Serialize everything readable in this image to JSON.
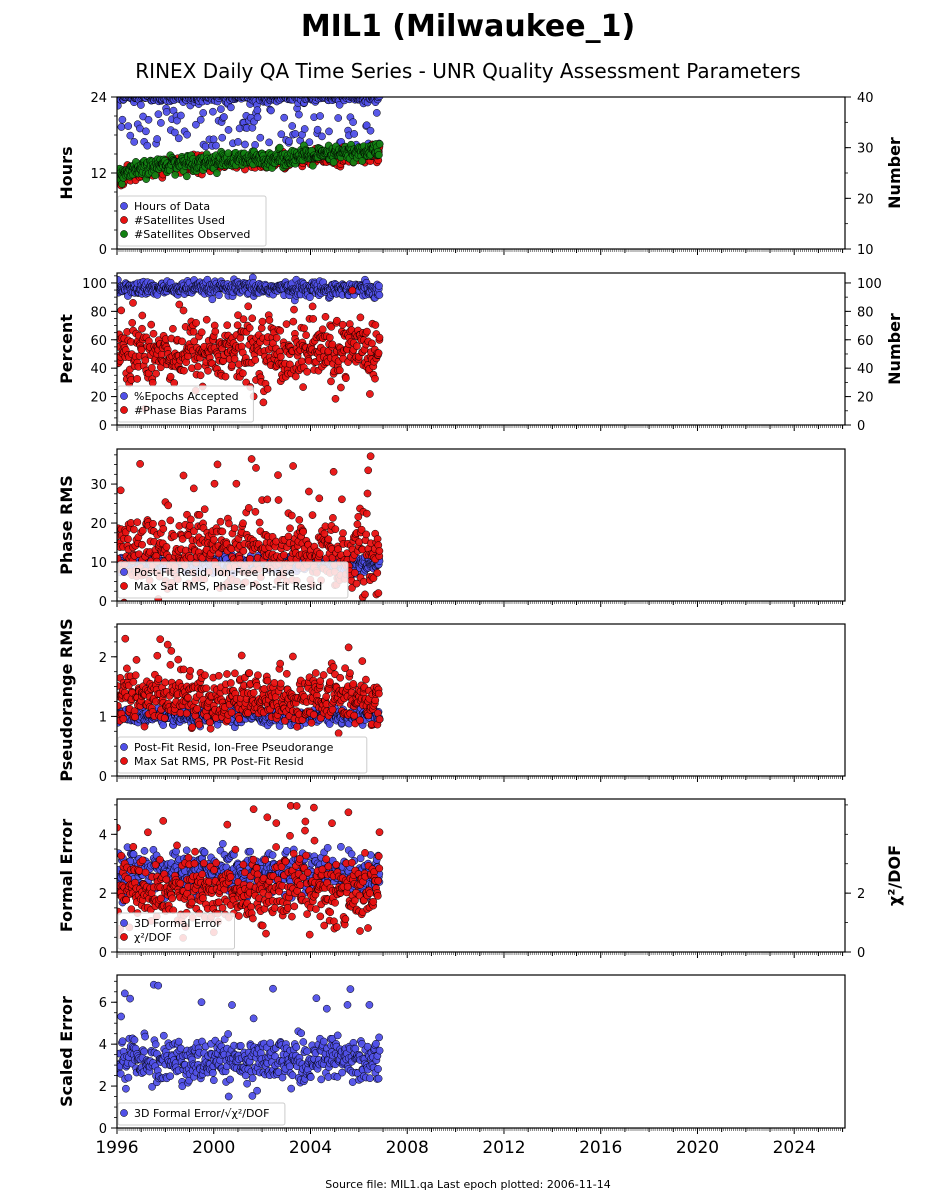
{
  "title": "MIL1 (Milwaukee_1)",
  "subtitle": "RINEX Daily QA Time Series - UNR Quality Assessment Parameters",
  "footer": "Source file: MIL1.qa  Last epoch plotted: 2006-11-14",
  "x_tick_labels": [
    "1996",
    "2000",
    "2004",
    "2008",
    "2012",
    "2016",
    "2020",
    "2024"
  ],
  "colors": {
    "blue": "#5050e8",
    "red": "#e81010",
    "green": "#128012"
  },
  "chart_data": [
    {
      "type": "scatter",
      "ylabel": "Hours",
      "ylabel_right": "Number",
      "ylim": [
        0,
        24
      ],
      "ylim_right": [
        10,
        40
      ],
      "yticks": [
        0,
        12,
        24
      ],
      "yticks_right": [
        10,
        20,
        30,
        40
      ],
      "xlim": [
        1996.0,
        2026.1
      ],
      "legend_loc": "lower-left",
      "series": [
        {
          "name": "Hours of Data",
          "color": "blue",
          "axis": "left",
          "x_range": [
            1996.0,
            2006.87
          ],
          "center": 23.9,
          "spread": 0.3,
          "outlier_rate": 0.25,
          "outlier_range": [
            16,
            23.5
          ]
        },
        {
          "name": "#Satellites Used",
          "color": "red",
          "axis": "right",
          "trend": [
            [
              1996.0,
              24.0
            ],
            [
              1998.0,
              26.5
            ],
            [
              2003.0,
              27.5
            ],
            [
              2006.9,
              29.0
            ]
          ],
          "spread": 0.8
        },
        {
          "name": "#Satellites Observed",
          "color": "green",
          "axis": "right",
          "trend": [
            [
              1996.0,
              24.5
            ],
            [
              1998.0,
              26.8
            ],
            [
              2003.0,
              28.0
            ],
            [
              2006.9,
              29.5
            ]
          ],
          "spread": 0.8
        }
      ]
    },
    {
      "type": "scatter",
      "ylabel": "Percent",
      "ylabel_right": "Number",
      "ylim": [
        0,
        107
      ],
      "yticks": [
        0,
        20,
        40,
        60,
        80,
        100
      ],
      "yticks_right": [
        0,
        20,
        40,
        60,
        80,
        100
      ],
      "xlim": [
        1996.0,
        2026.1
      ],
      "legend_loc": "lower-left",
      "series": [
        {
          "name": "%Epochs Accepted",
          "color": "blue",
          "center": 96,
          "spread": 2.5
        },
        {
          "name": "#Phase Bias Params",
          "color": "red",
          "center": 52,
          "spread": 12
        }
      ]
    },
    {
      "type": "scatter",
      "ylabel": "Phase RMS",
      "ylim": [
        0,
        39
      ],
      "yticks": [
        0,
        10,
        20,
        30
      ],
      "xlim": [
        1996.0,
        2026.1
      ],
      "legend_loc": "lower-left",
      "series": [
        {
          "name": "Post-Fit Resid, Ion-Free Phase",
          "color": "blue",
          "center": 9.5,
          "spread": 1.0
        },
        {
          "name": "Max Sat RMS, Phase Post-Fit Resid",
          "color": "red",
          "center": 12.5,
          "spread": 5,
          "max": 37.5
        }
      ]
    },
    {
      "type": "scatter",
      "ylabel": "Pseudorange RMS",
      "ylim": [
        0,
        2.55
      ],
      "yticks": [
        0,
        1,
        2
      ],
      "xlim": [
        1996.0,
        2026.1
      ],
      "legend_loc": "lower-left",
      "series": [
        {
          "name": "Post-Fit Resid, Ion-Free Pseudorange",
          "color": "blue",
          "center": 1.0,
          "spread": 0.06
        },
        {
          "name": "Max Sat RMS, PR Post-Fit Resid",
          "color": "red",
          "center": 1.3,
          "spread": 0.22,
          "max": 2.45
        }
      ]
    },
    {
      "type": "scatter",
      "ylabel": "Formal Error",
      "ylabel_right": "χ²/DOF",
      "ylim": [
        0,
        5.2
      ],
      "yticks": [
        0,
        2,
        4
      ],
      "yticks_right": [
        0,
        2
      ],
      "xlim": [
        1996.0,
        2026.1
      ],
      "legend_loc": "lower-left",
      "series": [
        {
          "name": "3D Formal Error",
          "color": "blue",
          "center": 2.7,
          "spread": 0.35
        },
        {
          "name": "χ²/DOF",
          "color": "red",
          "center": 2.1,
          "spread": 0.6,
          "max": 5.0
        }
      ]
    },
    {
      "type": "scatter",
      "ylabel": "Scaled Error",
      "ylim": [
        0,
        7.3
      ],
      "yticks": [
        0,
        2,
        4,
        6
      ],
      "xlim": [
        1996.0,
        2026.1
      ],
      "legend_loc": "lower-left",
      "series": [
        {
          "name": "3D Formal Error/√χ²/DOF",
          "color": "blue",
          "center": 3.2,
          "spread": 0.55,
          "max": 7.0
        }
      ]
    }
  ]
}
